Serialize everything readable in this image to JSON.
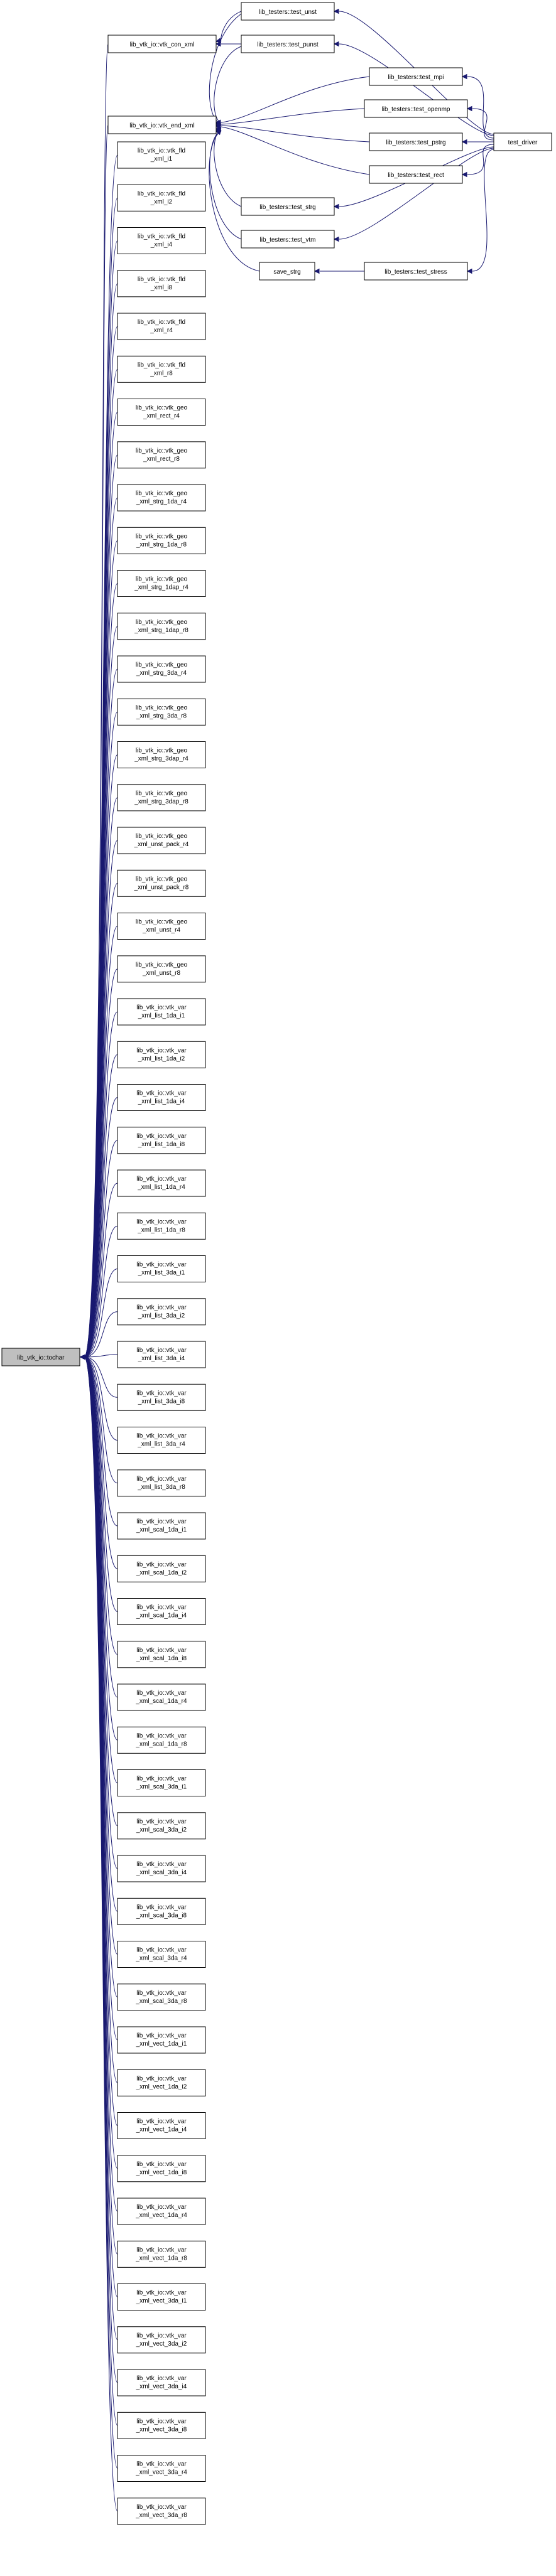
{
  "graph": {
    "root": "lib_vtk_io::tochar",
    "left_column": [
      [
        "lib_vtk_io::vtk_fld",
        "_xml_i1"
      ],
      [
        "lib_vtk_io::vtk_fld",
        "_xml_i2"
      ],
      [
        "lib_vtk_io::vtk_fld",
        "_xml_i4"
      ],
      [
        "lib_vtk_io::vtk_fld",
        "_xml_i8"
      ],
      [
        "lib_vtk_io::vtk_fld",
        "_xml_r4"
      ],
      [
        "lib_vtk_io::vtk_fld",
        "_xml_r8"
      ],
      [
        "lib_vtk_io::vtk_geo",
        "_xml_rect_r4"
      ],
      [
        "lib_vtk_io::vtk_geo",
        "_xml_rect_r8"
      ],
      [
        "lib_vtk_io::vtk_geo",
        "_xml_strg_1da_r4"
      ],
      [
        "lib_vtk_io::vtk_geo",
        "_xml_strg_1da_r8"
      ],
      [
        "lib_vtk_io::vtk_geo",
        "_xml_strg_1dap_r4"
      ],
      [
        "lib_vtk_io::vtk_geo",
        "_xml_strg_1dap_r8"
      ],
      [
        "lib_vtk_io::vtk_geo",
        "_xml_strg_3da_r4"
      ],
      [
        "lib_vtk_io::vtk_geo",
        "_xml_strg_3da_r8"
      ],
      [
        "lib_vtk_io::vtk_geo",
        "_xml_strg_3dap_r4"
      ],
      [
        "lib_vtk_io::vtk_geo",
        "_xml_strg_3dap_r8"
      ],
      [
        "lib_vtk_io::vtk_geo",
        "_xml_unst_pack_r4"
      ],
      [
        "lib_vtk_io::vtk_geo",
        "_xml_unst_pack_r8"
      ],
      [
        "lib_vtk_io::vtk_geo",
        "_xml_unst_r4"
      ],
      [
        "lib_vtk_io::vtk_geo",
        "_xml_unst_r8"
      ],
      [
        "lib_vtk_io::vtk_var",
        "_xml_list_1da_i1"
      ],
      [
        "lib_vtk_io::vtk_var",
        "_xml_list_1da_i2"
      ],
      [
        "lib_vtk_io::vtk_var",
        "_xml_list_1da_i4"
      ],
      [
        "lib_vtk_io::vtk_var",
        "_xml_list_1da_i8"
      ],
      [
        "lib_vtk_io::vtk_var",
        "_xml_list_1da_r4"
      ],
      [
        "lib_vtk_io::vtk_var",
        "_xml_list_1da_r8"
      ],
      [
        "lib_vtk_io::vtk_var",
        "_xml_list_3da_i1"
      ],
      [
        "lib_vtk_io::vtk_var",
        "_xml_list_3da_i2"
      ],
      [
        "lib_vtk_io::vtk_var",
        "_xml_list_3da_i4"
      ],
      [
        "lib_vtk_io::vtk_var",
        "_xml_list_3da_i8"
      ],
      [
        "lib_vtk_io::vtk_var",
        "_xml_list_3da_r4"
      ],
      [
        "lib_vtk_io::vtk_var",
        "_xml_list_3da_r8"
      ],
      [
        "lib_vtk_io::vtk_var",
        "_xml_scal_1da_i1"
      ],
      [
        "lib_vtk_io::vtk_var",
        "_xml_scal_1da_i2"
      ],
      [
        "lib_vtk_io::vtk_var",
        "_xml_scal_1da_i4"
      ],
      [
        "lib_vtk_io::vtk_var",
        "_xml_scal_1da_i8"
      ],
      [
        "lib_vtk_io::vtk_var",
        "_xml_scal_1da_r4"
      ],
      [
        "lib_vtk_io::vtk_var",
        "_xml_scal_1da_r8"
      ],
      [
        "lib_vtk_io::vtk_var",
        "_xml_scal_3da_i1"
      ],
      [
        "lib_vtk_io::vtk_var",
        "_xml_scal_3da_i2"
      ],
      [
        "lib_vtk_io::vtk_var",
        "_xml_scal_3da_i4"
      ],
      [
        "lib_vtk_io::vtk_var",
        "_xml_scal_3da_i8"
      ],
      [
        "lib_vtk_io::vtk_var",
        "_xml_scal_3da_r4"
      ],
      [
        "lib_vtk_io::vtk_var",
        "_xml_scal_3da_r8"
      ],
      [
        "lib_vtk_io::vtk_var",
        "_xml_vect_1da_i1"
      ],
      [
        "lib_vtk_io::vtk_var",
        "_xml_vect_1da_i2"
      ],
      [
        "lib_vtk_io::vtk_var",
        "_xml_vect_1da_i4"
      ],
      [
        "lib_vtk_io::vtk_var",
        "_xml_vect_1da_i8"
      ],
      [
        "lib_vtk_io::vtk_var",
        "_xml_vect_1da_r4"
      ],
      [
        "lib_vtk_io::vtk_var",
        "_xml_vect_1da_r8"
      ],
      [
        "lib_vtk_io::vtk_var",
        "_xml_vect_3da_i1"
      ],
      [
        "lib_vtk_io::vtk_var",
        "_xml_vect_3da_i2"
      ],
      [
        "lib_vtk_io::vtk_var",
        "_xml_vect_3da_i4"
      ],
      [
        "lib_vtk_io::vtk_var",
        "_xml_vect_3da_i8"
      ],
      [
        "lib_vtk_io::vtk_var",
        "_xml_vect_3da_r4"
      ],
      [
        "lib_vtk_io::vtk_var",
        "_xml_vect_3da_r8"
      ]
    ],
    "vtk_con_xml": "lib_vtk_io::vtk_con_xml",
    "vtk_end_xml": "lib_vtk_io::vtk_end_xml",
    "test_unst": "lib_testers::test_unst",
    "test_punst": "lib_testers::test_punst",
    "test_mpi": "lib_testers::test_mpi",
    "test_openmp": "lib_testers::test_openmp",
    "test_pstrg": "lib_testers::test_pstrg",
    "test_rect": "lib_testers::test_rect",
    "test_strg": "lib_testers::test_strg",
    "test_vtm": "lib_testers::test_vtm",
    "save_strg": "save_strg",
    "test_stress": "lib_testers::test_stress",
    "test_driver": "test_driver",
    "colors": {
      "edge": "#191970",
      "root_fill": "#bfbfbf",
      "node_fill": "#ffffff"
    }
  }
}
